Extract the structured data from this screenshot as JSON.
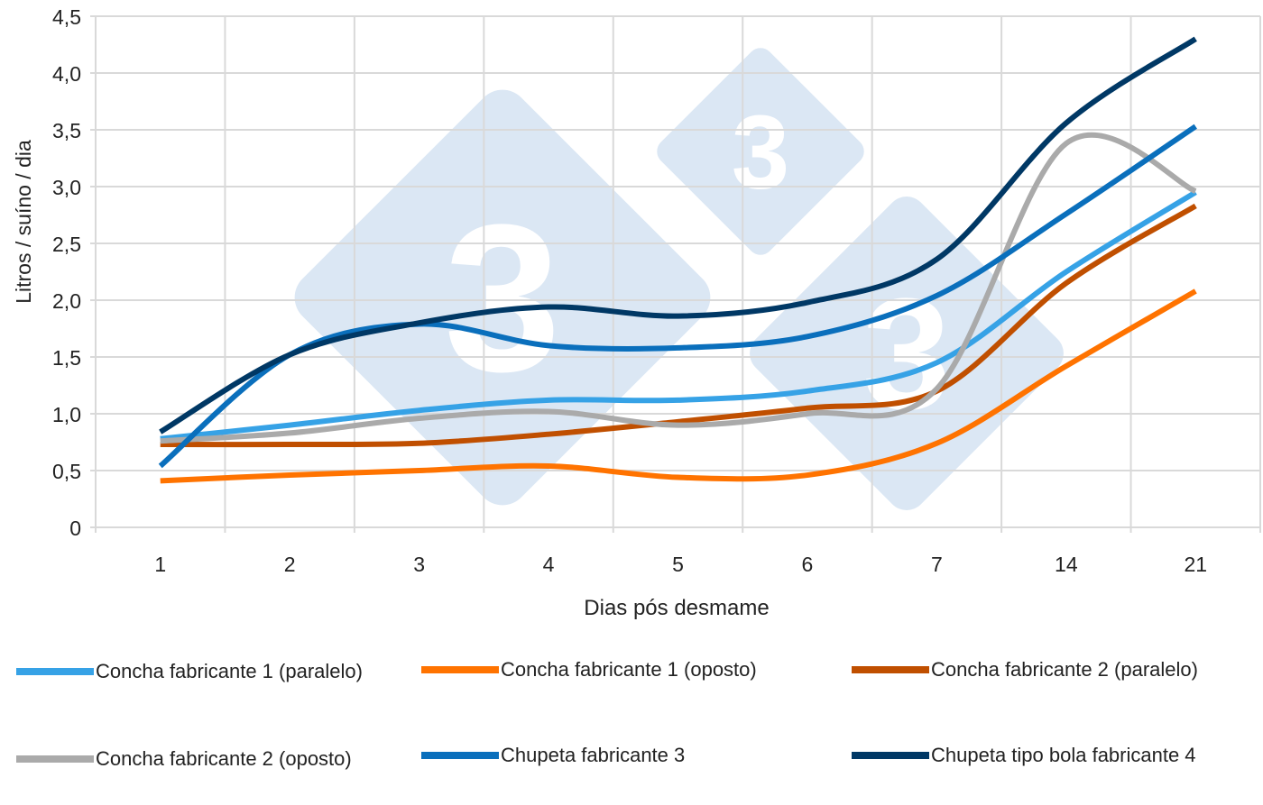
{
  "chart_data": {
    "type": "line",
    "title": "",
    "xlabel": "Dias pós desmame",
    "ylabel": "Litros / suíno / dia",
    "categories": [
      "1",
      "2",
      "3",
      "4",
      "5",
      "6",
      "7",
      "14",
      "21"
    ],
    "ylim": [
      0,
      4.5
    ],
    "yticks": [
      "0",
      "0,5",
      "1,0",
      "1,5",
      "2,0",
      "2,5",
      "3,0",
      "3,5",
      "4,0",
      "4,5"
    ],
    "grid": true,
    "smooth": true,
    "legend_position": "bottom",
    "series": [
      {
        "name": "Concha fabricante 1 (paralelo)",
        "color": "#36a2e6",
        "values": [
          0.78,
          0.9,
          1.03,
          1.12,
          1.12,
          1.2,
          1.45,
          2.25,
          2.95
        ]
      },
      {
        "name": "Concha fabricante 1 (oposto)",
        "color": "#ff7300",
        "values": [
          0.41,
          0.46,
          0.5,
          0.54,
          0.44,
          0.46,
          0.74,
          1.42,
          2.08
        ]
      },
      {
        "name": "Concha fabricante 2 (paralelo)",
        "color": "#c04f00",
        "values": [
          0.73,
          0.73,
          0.74,
          0.82,
          0.93,
          1.05,
          1.2,
          2.15,
          2.83
        ]
      },
      {
        "name": "Concha fabricante 2 (oposto)",
        "color": "#aaaaaa",
        "values": [
          0.76,
          0.83,
          0.96,
          1.02,
          0.9,
          1.0,
          1.22,
          3.38,
          2.96
        ]
      },
      {
        "name": "Chupeta fabricante 3",
        "color": "#0a6fbc",
        "values": [
          0.54,
          1.52,
          1.79,
          1.6,
          1.58,
          1.68,
          2.04,
          2.76,
          3.53
        ]
      },
      {
        "name": "Chupeta tipo bola fabricante 4",
        "color": "#003865",
        "values": [
          0.84,
          1.52,
          1.8,
          1.94,
          1.86,
          1.98,
          2.36,
          3.56,
          4.3
        ]
      }
    ]
  },
  "watermark": {
    "glyph": "3",
    "color": "#dbe7f4"
  }
}
